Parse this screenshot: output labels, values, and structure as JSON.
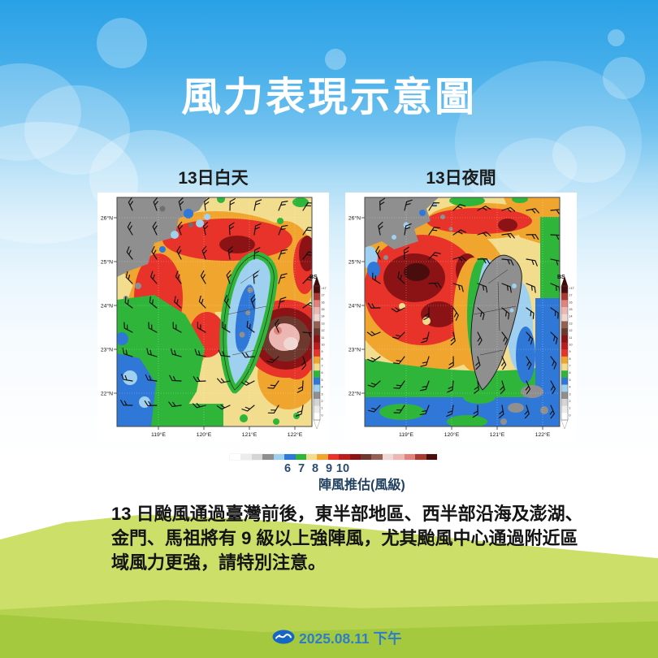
{
  "header": {
    "title": "風力表現示意圖"
  },
  "maps": {
    "day": {
      "title": "13日白天"
    },
    "night": {
      "title": "13日夜間"
    },
    "axis": {
      "lat": [
        "26°N",
        "25°N",
        "24°N",
        "23°N",
        "22°N"
      ],
      "lon": [
        "119°E",
        "120°E",
        "121°E",
        "122°E"
      ]
    },
    "colorbar": {
      "label": "BS",
      "ticks": [
        ">17",
        "17",
        "16",
        "15",
        "14",
        "13",
        "12",
        "11",
        "10",
        "9",
        "8",
        "7",
        "6",
        "5",
        "4",
        "3",
        "2",
        "1",
        "0"
      ]
    }
  },
  "legend": {
    "numbers": [
      "6",
      "7",
      "8",
      "9",
      "10"
    ],
    "caption": "陣風推估(風級)",
    "colors": [
      "#ffffff",
      "#ececec",
      "#d5d5d5",
      "#8f8f8f",
      "#9fd0f0",
      "#2f78d8",
      "#2fb53a",
      "#f2dd8e",
      "#f0a52f",
      "#e7332a",
      "#bb1c1e",
      "#8c1315",
      "#6d392f",
      "#936052",
      "#efd7d3",
      "#ecb7b2",
      "#e0837c",
      "#a93a31",
      "#4a0d0d"
    ]
  },
  "description": {
    "lines": [
      "13 日颱風通過臺灣前後，東半部地區、西半部沿海及澎湖、",
      "金門、馬祖將有 9 級以上強陣風，尤其颱風中心通過附近區",
      "域風力更強，請特別注意。"
    ]
  },
  "footer": {
    "date": "2025.08.11 下午"
  }
}
